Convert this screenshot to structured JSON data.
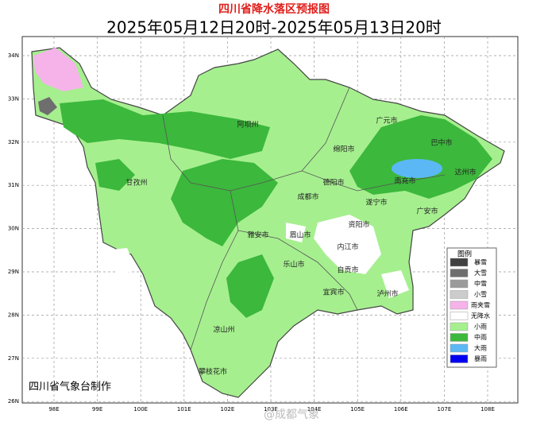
{
  "title": "四川省降水落区预报图",
  "subtitle": "2025年05月12日20时-2025年05月13日20时",
  "lon_labels": [
    "98E",
    "99E",
    "100E",
    "101E",
    "102E",
    "103E",
    "104E",
    "105E",
    "106E",
    "107E",
    "108E"
  ],
  "lat_labels": [
    "34N",
    "33N",
    "32N",
    "31N",
    "30N",
    "29N",
    "28N",
    "27N",
    "26N"
  ],
  "cities": [
    "阿坝州",
    "甘孜州",
    "绵阳市",
    "广元市",
    "巴中市",
    "达州市",
    "南充市",
    "德阳市",
    "成都市",
    "遂宁市",
    "广安市",
    "雅安市",
    "眉山市",
    "资阳市",
    "内江市",
    "乐山市",
    "自贡市",
    "宜宾市",
    "泸州市",
    "凉山州",
    "攀枝花市"
  ],
  "legend": {
    "title": "图例",
    "items": [
      {
        "label": "暴雪",
        "color": "#404040"
      },
      {
        "label": "大雪",
        "color": "#6e6e6e"
      },
      {
        "label": "中雪",
        "color": "#9a9a9a"
      },
      {
        "label": "小雪",
        "color": "#cccccc"
      },
      {
        "label": "雨夹雪",
        "color": "#f5b3ea"
      },
      {
        "label": "无降水",
        "color": "#ffffff"
      },
      {
        "label": "小雨",
        "color": "#a6ef8f"
      },
      {
        "label": "中雨",
        "color": "#3cb83c"
      },
      {
        "label": "大雨",
        "color": "#5cb8f5"
      },
      {
        "label": "暴雨",
        "color": "#0000f0"
      }
    ]
  },
  "credit": "四川省气象台制作",
  "watermark": "@成都气象"
}
